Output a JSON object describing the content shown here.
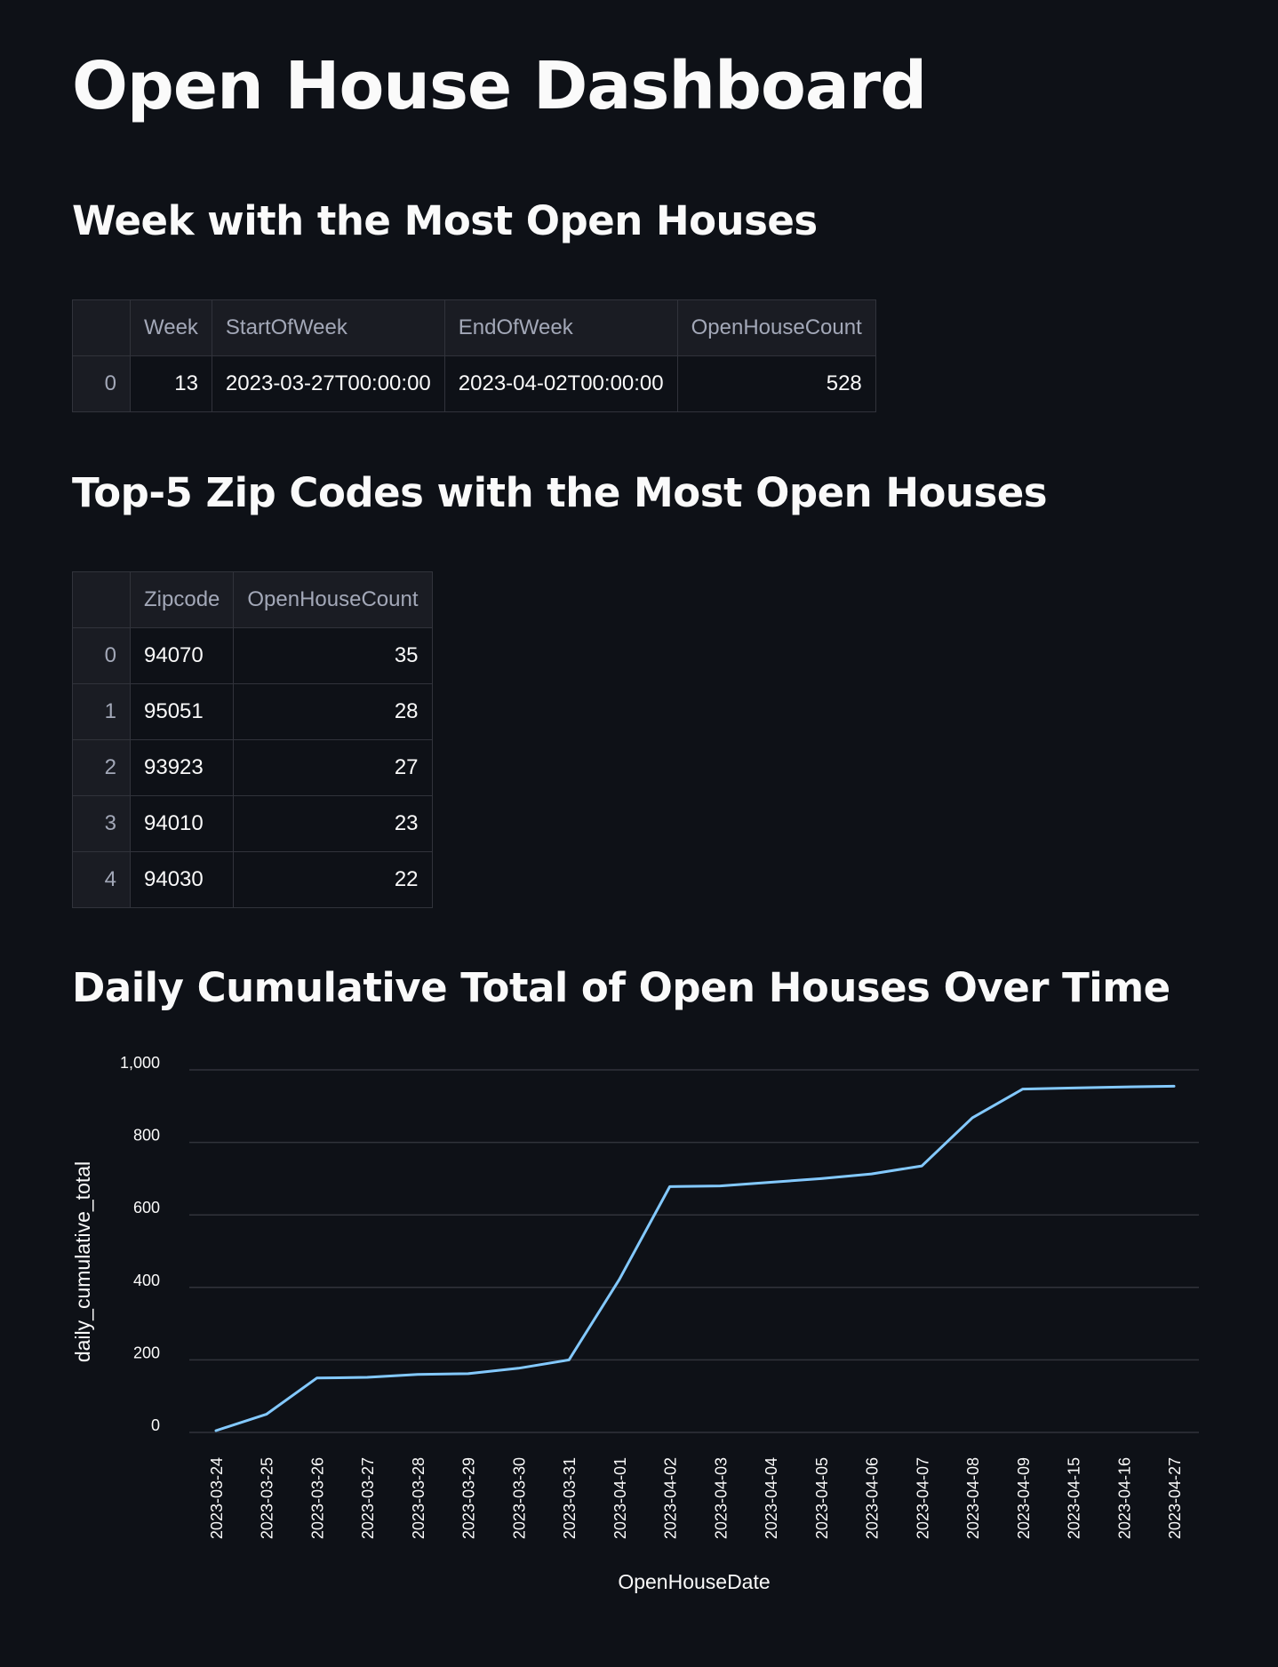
{
  "title": "Open House Dashboard",
  "section1": {
    "heading": "Week with the Most Open Houses",
    "columns": [
      "Week",
      "StartOfWeek",
      "EndOfWeek",
      "OpenHouseCount"
    ],
    "rows": [
      {
        "index": "0",
        "week": "13",
        "start": "2023-03-27T00:00:00",
        "end": "2023-04-02T00:00:00",
        "count": "528"
      }
    ]
  },
  "section2": {
    "heading": "Top-5 Zip Codes with the Most Open Houses",
    "columns": [
      "Zipcode",
      "OpenHouseCount"
    ],
    "rows": [
      {
        "index": "0",
        "zip": "94070",
        "count": "35"
      },
      {
        "index": "1",
        "zip": "95051",
        "count": "28"
      },
      {
        "index": "2",
        "zip": "93923",
        "count": "27"
      },
      {
        "index": "3",
        "zip": "94010",
        "count": "23"
      },
      {
        "index": "4",
        "zip": "94030",
        "count": "22"
      }
    ]
  },
  "section3": {
    "heading": "Daily Cumulative Total of Open Houses Over Time"
  },
  "chart_data": {
    "type": "line",
    "x": [
      "2023-03-24",
      "2023-03-25",
      "2023-03-26",
      "2023-03-27",
      "2023-03-28",
      "2023-03-29",
      "2023-03-30",
      "2023-03-31",
      "2023-04-01",
      "2023-04-02",
      "2023-04-03",
      "2023-04-04",
      "2023-04-05",
      "2023-04-06",
      "2023-04-07",
      "2023-04-08",
      "2023-04-09",
      "2023-04-15",
      "2023-04-16",
      "2023-04-27"
    ],
    "series": [
      {
        "values": [
          5,
          50,
          150,
          152,
          160,
          162,
          177,
          200,
          422,
          678,
          680,
          690,
          700,
          713,
          735,
          868,
          947,
          950,
          953,
          955
        ]
      }
    ],
    "xlabel": "OpenHouseDate",
    "ylabel": "daily_cumulative_total",
    "yticks": [
      0,
      200,
      400,
      600,
      800,
      1000
    ],
    "ytick_labels": [
      "0",
      "200",
      "400",
      "600",
      "800",
      "1,000"
    ],
    "ylim": [
      0,
      1000
    ],
    "grid": true,
    "line_color": "#83c9ff"
  }
}
